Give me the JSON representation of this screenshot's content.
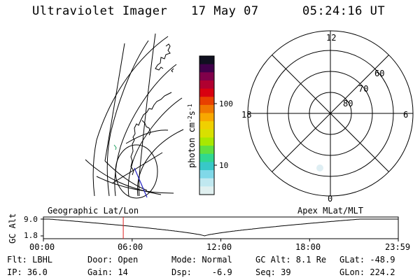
{
  "header": {
    "title": "Ultraviolet Imager",
    "date": "17 May 07",
    "time": "05:24:16 UT"
  },
  "colorbar": {
    "label": "photon cm",
    "label_sup1": "-2",
    "label_mid": "s",
    "label_sup2": "-1",
    "ticks": [
      "100",
      "10"
    ],
    "colors": [
      "#101020",
      "#40004a",
      "#80004a",
      "#b00030",
      "#d80010",
      "#e84000",
      "#f07800",
      "#f8a800",
      "#f0d000",
      "#d8e000",
      "#a8e800",
      "#60e040",
      "#30d890",
      "#38c8c8",
      "#80d8e8",
      "#c0e8f0",
      "#e0f0f0"
    ]
  },
  "polar": {
    "mlt_labels": [
      "12",
      "18",
      "6",
      "0"
    ],
    "lat_labels": [
      "60",
      "70",
      "80"
    ]
  },
  "timeline": {
    "ylabel": "GC Alt",
    "yticks": [
      "9.0",
      "1.8"
    ],
    "left_label": "Geographic Lat/Lon",
    "right_label": "Apex MLat/MLT",
    "xticks": [
      "00:00",
      "06:00",
      "12:00",
      "18:00",
      "23:59"
    ],
    "marker_time_hours": 5.4,
    "alt_min_re": 1.8,
    "alt_max_re": 9.0,
    "perigee_time_hours": 10.9
  },
  "info": {
    "filter": "Flt: LBHL",
    "ip": "IP: 36.0",
    "door": "Door: Open",
    "gain": "Gain: 14",
    "mode": "Mode: Normal",
    "dsp": "Dsp:    -6.9",
    "gcalt": "GC Alt: 8.1 Re",
    "seq": "Seq: 39",
    "glat": "GLat: -48.9",
    "glon": "GLon: 224.2"
  }
}
